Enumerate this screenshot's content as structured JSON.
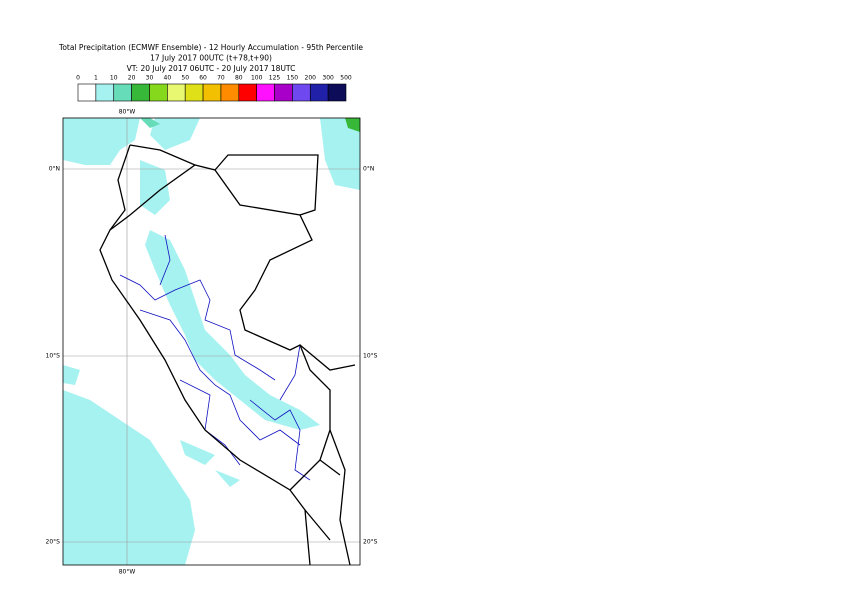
{
  "title": [
    "Total Precipitation (ECMWF Ensemble) - 12 Hourly Accumulation - 95th Percentile",
    "17 July 2017 00UTC (t+78,t+90)",
    "VT: 20 July 2017 06UTC - 20 July 2017 18UTC"
  ],
  "legend": {
    "labels": [
      "0",
      "1",
      "10",
      "20",
      "30",
      "40",
      "50",
      "60",
      "70",
      "80",
      "100",
      "125",
      "150",
      "200",
      "300",
      "500"
    ],
    "colors": [
      "#ffffff",
      "#a6f2f0",
      "#66dcb8",
      "#38b838",
      "#86d81c",
      "#e8f870",
      "#e0e018",
      "#f2c000",
      "#ff8c00",
      "#ff0000",
      "#ff10ff",
      "#a800c8",
      "#7048f0",
      "#2020a8",
      "#0c0c58"
    ]
  },
  "map": {
    "lon_top": "80°W",
    "lon_bottom": "80°W",
    "lat_left": [
      "0°N",
      "10°S",
      "20°S"
    ],
    "lat_right": [
      "0°N",
      "10°S",
      "20°S"
    ]
  }
}
